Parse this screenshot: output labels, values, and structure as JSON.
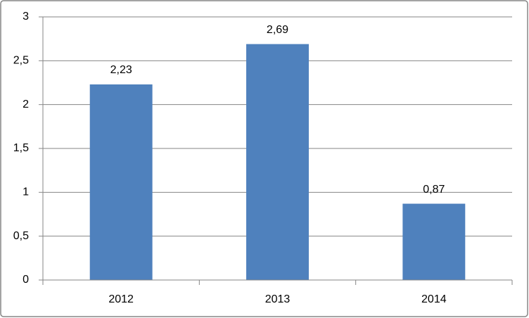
{
  "chart_data": {
    "type": "bar",
    "categories": [
      "2012",
      "2013",
      "2014"
    ],
    "values": [
      2.23,
      2.69,
      0.87
    ],
    "value_labels": [
      "2,23",
      "2,69",
      "0,87"
    ],
    "color": "#4f81bd",
    "ylim": [
      0,
      3
    ],
    "yticks": [
      0,
      {
        "value": 0.5,
        "label": "0,5"
      },
      1,
      {
        "value": 1.5,
        "label": "1,5"
      },
      2,
      {
        "value": 2.5,
        "label": "2,5"
      },
      3
    ],
    "grid": true
  }
}
